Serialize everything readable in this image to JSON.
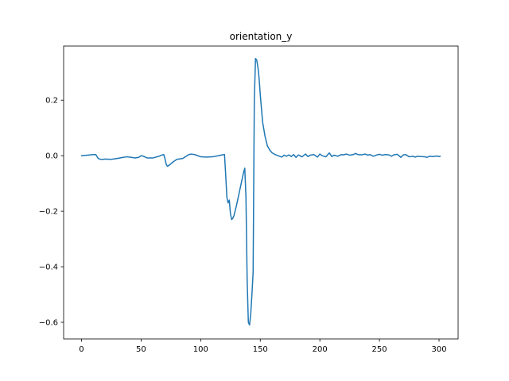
{
  "chart_data": {
    "type": "line",
    "title": "orientation_y",
    "xlabel": "",
    "ylabel": "",
    "xlim": [
      -15,
      316
    ],
    "ylim": [
      -0.66,
      0.395
    ],
    "xticks": [
      0,
      50,
      100,
      150,
      200,
      250,
      300
    ],
    "xtick_labels": [
      "0",
      "50",
      "100",
      "150",
      "200",
      "250",
      "300"
    ],
    "yticks": [
      -0.6,
      -0.4,
      -0.2,
      0.0,
      0.2
    ],
    "ytick_labels": [
      "−0.6",
      "−0.4",
      "−0.2",
      "0.0",
      "0.2"
    ],
    "grid": false,
    "legend": "none",
    "series": [
      {
        "color": "#1f77b4",
        "x": [
          0,
          5,
          10,
          12,
          14,
          16,
          18,
          20,
          25,
          30,
          35,
          38,
          40,
          45,
          48,
          50,
          52,
          55,
          60,
          65,
          68,
          69,
          70,
          71,
          72,
          74,
          76,
          80,
          85,
          90,
          92,
          95,
          100,
          105,
          110,
          115,
          118,
          120,
          121,
          122,
          123,
          124,
          125,
          126,
          127,
          128,
          130,
          132,
          134,
          136,
          137,
          138,
          139,
          140,
          141,
          142,
          143,
          144,
          145,
          146,
          147,
          148,
          149,
          150,
          151,
          152,
          154,
          156,
          158,
          160,
          162,
          165,
          168,
          170,
          172,
          174,
          176,
          178,
          180,
          182,
          185,
          188,
          190,
          192,
          195,
          198,
          200,
          202,
          205,
          208,
          210,
          212,
          215,
          218,
          220,
          222,
          225,
          228,
          230,
          232,
          235,
          238,
          240,
          242,
          245,
          248,
          250,
          252,
          255,
          258,
          260,
          262,
          265,
          268,
          270,
          272,
          275,
          278,
          280,
          282,
          285,
          288,
          290,
          292,
          295,
          298,
          300,
          301
        ],
        "y": [
          0.0,
          0.002,
          0.004,
          0.004,
          -0.01,
          -0.013,
          -0.013,
          -0.012,
          -0.013,
          -0.01,
          -0.006,
          -0.004,
          -0.005,
          -0.008,
          -0.006,
          0.0,
          -0.002,
          -0.008,
          -0.008,
          -0.002,
          0.003,
          0.004,
          -0.01,
          -0.03,
          -0.038,
          -0.033,
          -0.025,
          -0.013,
          -0.01,
          0.004,
          0.006,
          0.004,
          -0.004,
          -0.005,
          -0.004,
          0.0,
          0.003,
          0.004,
          -0.07,
          -0.15,
          -0.17,
          -0.16,
          -0.21,
          -0.23,
          -0.225,
          -0.215,
          -0.18,
          -0.14,
          -0.1,
          -0.06,
          -0.045,
          -0.15,
          -0.45,
          -0.6,
          -0.61,
          -0.57,
          -0.5,
          -0.42,
          0.2,
          0.35,
          0.345,
          0.32,
          0.28,
          0.22,
          0.17,
          0.12,
          0.07,
          0.035,
          0.02,
          0.01,
          0.005,
          0.0,
          -0.005,
          0.002,
          -0.002,
          0.003,
          -0.003,
          0.004,
          -0.006,
          0.003,
          -0.004,
          0.006,
          -0.003,
          0.002,
          0.004,
          -0.005,
          0.006,
          0.0,
          -0.004,
          0.01,
          -0.003,
          0.002,
          -0.002,
          0.004,
          0.003,
          0.006,
          0.002,
          0.004,
          0.008,
          0.004,
          0.003,
          0.006,
          0.002,
          0.004,
          -0.002,
          0.003,
          0.005,
          0.002,
          0.004,
          0.003,
          -0.002,
          0.003,
          0.005,
          -0.006,
          0.003,
          0.004,
          -0.004,
          -0.002,
          -0.005,
          -0.002,
          -0.003,
          -0.004,
          -0.006,
          -0.002,
          -0.003,
          -0.001,
          -0.003,
          -0.002
        ]
      }
    ]
  }
}
